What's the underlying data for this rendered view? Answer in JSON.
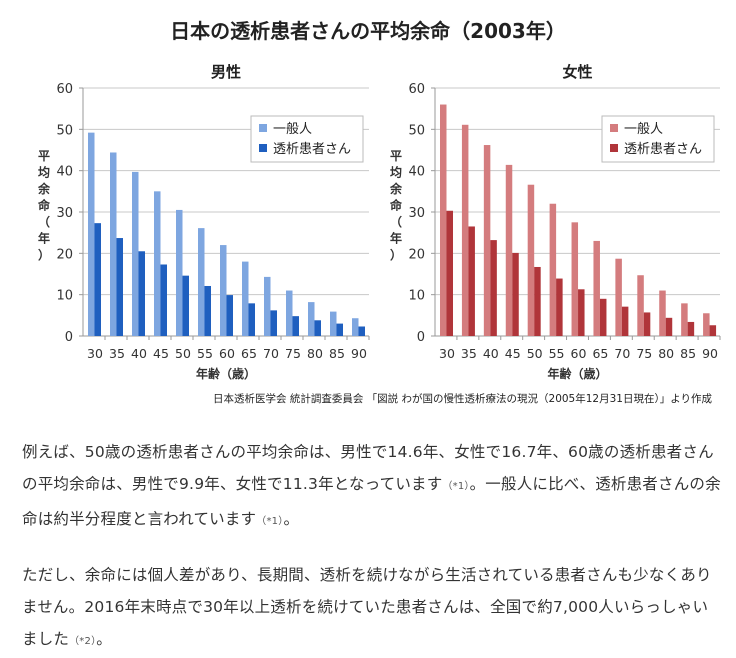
{
  "title": "日本の透析患者さんの平均余命（2003年）",
  "source": "日本透析医学会 統計調査委員会 「図説 わが国の慢性透析療法の現況（2005年12月31日現在）」より作成",
  "chart_data": [
    {
      "type": "bar",
      "title": "男性",
      "xlabel": "年齢（歳）",
      "ylabel": "平均余命（年）",
      "ylim": [
        0,
        60
      ],
      "yticks": [
        0,
        10,
        20,
        30,
        40,
        50,
        60
      ],
      "grid": true,
      "legend": "top-right",
      "categories": [
        "30",
        "35",
        "40",
        "45",
        "50",
        "55",
        "60",
        "65",
        "70",
        "75",
        "80",
        "85",
        "90"
      ],
      "series": [
        {
          "name": "一般人",
          "color": "#7EA6E0",
          "values": [
            49.2,
            44.4,
            39.7,
            35.0,
            30.5,
            26.1,
            22.0,
            18.0,
            14.3,
            11.0,
            8.2,
            5.9,
            4.3
          ]
        },
        {
          "name": "透析患者さん",
          "color": "#1F5FBF",
          "values": [
            27.3,
            23.7,
            20.5,
            17.3,
            14.6,
            12.1,
            9.9,
            7.9,
            6.2,
            4.8,
            3.8,
            3.0,
            2.3
          ]
        }
      ]
    },
    {
      "type": "bar",
      "title": "女性",
      "xlabel": "年齢（歳）",
      "ylabel": "平均余命（年）",
      "ylim": [
        0,
        60
      ],
      "yticks": [
        0,
        10,
        20,
        30,
        40,
        50,
        60
      ],
      "grid": true,
      "legend": "top-right",
      "categories": [
        "30",
        "35",
        "40",
        "45",
        "50",
        "55",
        "60",
        "65",
        "70",
        "75",
        "80",
        "85",
        "90"
      ],
      "series": [
        {
          "name": "一般人",
          "color": "#D47C7E",
          "values": [
            56.0,
            51.1,
            46.2,
            41.4,
            36.6,
            32.0,
            27.5,
            23.0,
            18.7,
            14.7,
            11.0,
            7.9,
            5.5
          ]
        },
        {
          "name": "透析患者さん",
          "color": "#B0353A",
          "values": [
            30.3,
            26.5,
            23.2,
            20.1,
            16.7,
            13.9,
            11.3,
            9.0,
            7.1,
            5.7,
            4.4,
            3.4,
            2.6
          ]
        }
      ]
    }
  ],
  "paragraphs": [
    {
      "parts": [
        "例えば、50歳の透析患者さんの平均余命は、男性で14.6年、女性で16.7年、60歳の透析患者さんの平均余命は、男性で9.9年、女性で11.3年となっています",
        "（*1）",
        "。一般人に比べ、透析患者さんの余命は約半分程度と言われています",
        "（*1）",
        "。"
      ]
    },
    {
      "parts": [
        "ただし、余命には個人差があり、長期間、透析を続けながら生活されている患者さんも少なくありません。2016年末時点で30年以上透析を続けていた患者さんは、全国で約7,000人いらっしゃいました",
        "（*2）",
        "。"
      ]
    }
  ]
}
